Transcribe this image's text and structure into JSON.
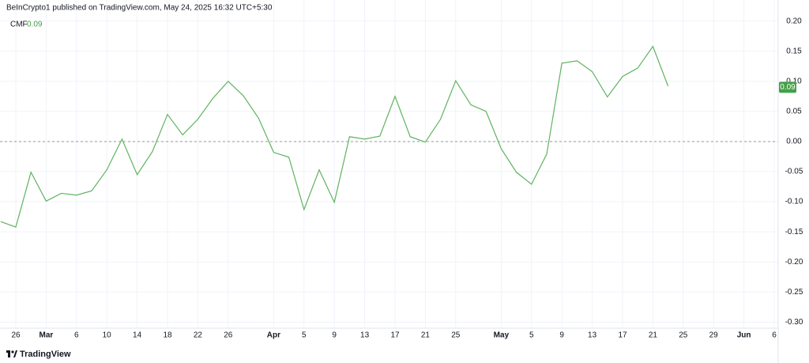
{
  "header": {
    "text": "BeInCrypto1 published on TradingView.com, May 24, 2025 16:32 UTC+5:30"
  },
  "branding": "TradingView",
  "chart_data": {
    "type": "line",
    "categories": [
      null,
      "26",
      null,
      "Mar",
      null,
      "6",
      null,
      "10",
      null,
      "14",
      null,
      "18",
      null,
      "22",
      null,
      "26",
      null,
      null,
      "Apr",
      null,
      "5",
      null,
      "9",
      null,
      "13",
      null,
      "17",
      null,
      "21",
      null,
      "25",
      null,
      null,
      "May",
      null,
      "5",
      null,
      "9",
      null,
      "13",
      null,
      "17",
      null,
      "21",
      null,
      "25",
      null,
      "29",
      null,
      "Jun",
      null,
      "6"
    ],
    "series": [
      {
        "name": "CMF",
        "color": "#5fb35f",
        "current_value": 0.09,
        "values": [
          -0.133,
          -0.142,
          -0.051,
          -0.099,
          -0.086,
          -0.089,
          -0.082,
          -0.047,
          0.004,
          -0.055,
          -0.017,
          0.045,
          0.011,
          0.037,
          0.072,
          0.1,
          0.076,
          0.039,
          -0.018,
          -0.026,
          -0.113,
          -0.047,
          -0.101,
          0.008,
          0.004,
          0.009,
          0.075,
          0.008,
          -0.001,
          0.037,
          0.101,
          0.061,
          0.05,
          -0.012,
          -0.051,
          -0.071,
          -0.021,
          0.13,
          0.134,
          0.116,
          0.074,
          0.108,
          0.122,
          0.158,
          0.092,
          null,
          null,
          null,
          null,
          null,
          null,
          null
        ]
      }
    ],
    "ylim": [
      -0.31,
      0.235
    ],
    "yticks": [
      {
        "value": 0.2,
        "label": "0.20"
      },
      {
        "value": 0.15,
        "label": "0.15"
      },
      {
        "value": 0.1,
        "label": "0.10"
      },
      {
        "value": 0.05,
        "label": "0.05"
      },
      {
        "value": 0,
        "label": "0.00"
      },
      {
        "value": -0.05,
        "label": "-0.05"
      },
      {
        "value": -0.1,
        "label": "-0.10"
      },
      {
        "value": -0.15,
        "label": "-0.15"
      },
      {
        "value": -0.2,
        "label": "-0.20"
      },
      {
        "value": -0.25,
        "label": "-0.25"
      },
      {
        "value": -0.3,
        "label": "-0.30"
      }
    ],
    "zero_line": 0,
    "grid": true,
    "badge_color": "#43a047"
  }
}
